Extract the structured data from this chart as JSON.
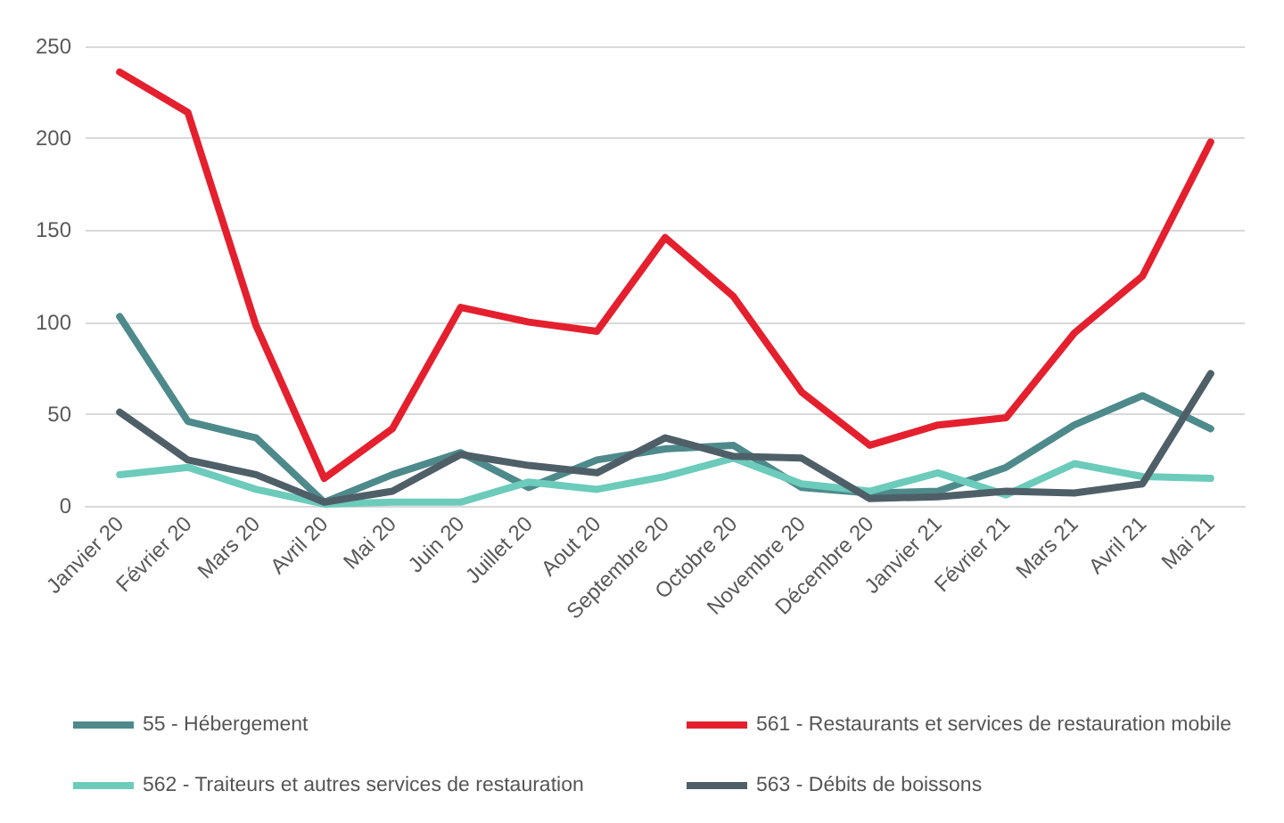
{
  "chart_data": {
    "type": "line",
    "categories": [
      "Janvier 20",
      "Février 20",
      "Mars 20",
      "Avril 20",
      "Mai 20",
      "Juin 20",
      "Juillet 20",
      "Aout 20",
      "Septembre 20",
      "Octobre 20",
      "Novembre 20",
      "Décembre 20",
      "Janvier 21",
      "Février 21",
      "Mars 21",
      "Avril 21",
      "Mai 21"
    ],
    "series": [
      {
        "name": "55 - Hébergement",
        "color": "#4e8a8b",
        "values": [
          103,
          46,
          37,
          2,
          17,
          29,
          10,
          25,
          31,
          33,
          10,
          7,
          8,
          21,
          44,
          60,
          42
        ]
      },
      {
        "name": "561 - Restaurants et services de restauration mobile",
        "color": "#e5202e",
        "values": [
          236,
          214,
          98,
          15,
          42,
          108,
          100,
          95,
          146,
          114,
          62,
          33,
          44,
          48,
          94,
          125,
          198
        ]
      },
      {
        "name": "562 - Traiteurs et autres services de restauration",
        "color": "#6ccbbb",
        "values": [
          17,
          21,
          9,
          1,
          2,
          2,
          13,
          9,
          16,
          26,
          12,
          8,
          18,
          6,
          23,
          16,
          15
        ]
      },
      {
        "name": "563 - Débits de boissons",
        "color": "#4f5f68",
        "values": [
          51,
          25,
          17,
          2,
          8,
          28,
          22,
          18,
          37,
          27,
          26,
          4,
          5,
          8,
          7,
          12,
          72
        ]
      }
    ],
    "ylim": [
      0,
      250
    ],
    "yticks": [
      0,
      50,
      100,
      150,
      200,
      250
    ],
    "grid": "y",
    "legend": "bottom",
    "marker": "none",
    "line_style": "solid"
  }
}
